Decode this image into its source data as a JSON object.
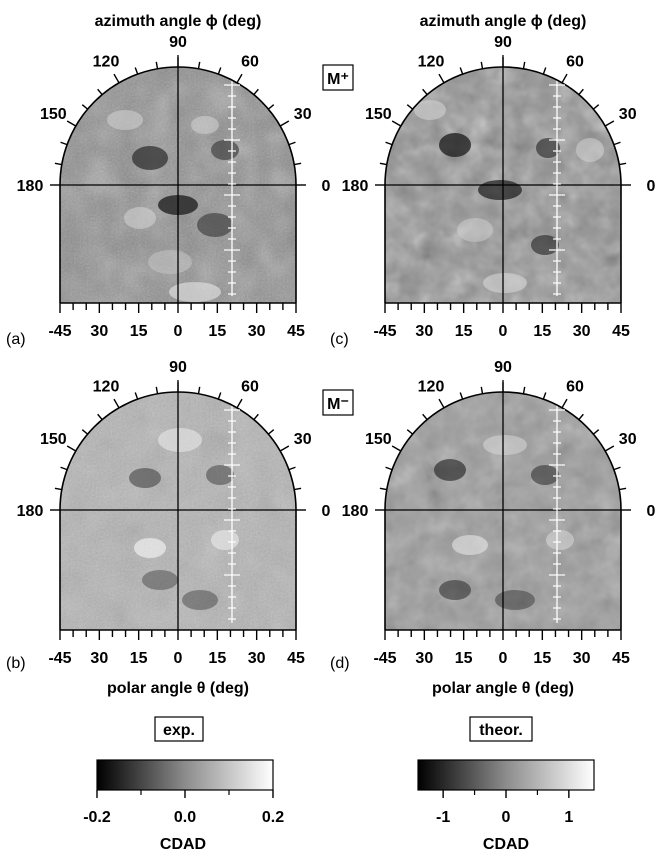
{
  "figure": {
    "top_axis_label": "azimuth angle ϕ  (deg)",
    "bottom_axis_label": "polar angle θ  (deg)",
    "azimuth_ticks": [
      "90",
      "120",
      "60",
      "150",
      "30",
      "180",
      "0"
    ],
    "polar_ticks": [
      "-45",
      "30",
      "15",
      "0",
      "15",
      "30",
      "45"
    ],
    "rows": [
      {
        "label": "M⁺",
        "panels": [
          {
            "letter": "(a)",
            "kind": "exp"
          },
          {
            "letter": "(c)",
            "kind": "theor"
          }
        ]
      },
      {
        "label": "M⁻",
        "panels": [
          {
            "letter": "(b)",
            "kind": "exp"
          },
          {
            "letter": "(d)",
            "kind": "theor"
          }
        ]
      }
    ]
  },
  "colorbars": [
    {
      "title": "exp.",
      "ticks": [
        "-0.2",
        "0.0",
        "0.2"
      ],
      "label": "CDAD",
      "min": -0.2,
      "max": 0.2
    },
    {
      "title": "theor.",
      "ticks": [
        "-1",
        "0",
        "1"
      ],
      "label": "CDAD",
      "min": -1.4,
      "max": 1.4
    }
  ],
  "colors": {
    "dark": "#000000",
    "light": "#ffffff",
    "mid_gray": "#8c8c8c"
  }
}
